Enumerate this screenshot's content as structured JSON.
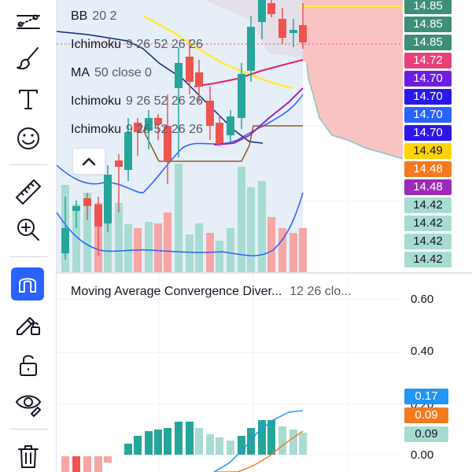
{
  "toolbar": {
    "tools": [
      {
        "name": "trend-line-tool-icon",
        "label": "Trend line"
      },
      {
        "name": "brush-tool-icon",
        "label": "Brush"
      },
      {
        "name": "text-tool-icon",
        "label": "Text"
      },
      {
        "name": "emoji-tool-icon",
        "label": "Icons"
      },
      {
        "name": "ruler-tool-icon",
        "label": "Measure"
      },
      {
        "name": "zoom-in-tool-icon",
        "label": "Zoom in"
      },
      {
        "name": "magnet-tool-icon",
        "label": "Magnet mode",
        "active": true
      },
      {
        "name": "lock-drawing-icon",
        "label": "Lock drawings"
      },
      {
        "name": "lock-all-icon",
        "label": "Lock all"
      },
      {
        "name": "hide-drawings-icon",
        "label": "Hide drawings"
      },
      {
        "name": "trash-icon",
        "label": "Remove drawings"
      }
    ],
    "active_color": "#2962ff"
  },
  "legend": [
    {
      "name": "BB",
      "params": "20 2"
    },
    {
      "name": "Ichimoku",
      "params": "9 26 52 26 26"
    },
    {
      "name": "MA",
      "params": "50 close 0"
    },
    {
      "name": "Ichimoku",
      "params": "9 26 52 26 26"
    },
    {
      "name": "Ichimoku",
      "params": "9 26 52 26 26"
    }
  ],
  "collapse_button": {
    "icon": "chevron-up-icon"
  },
  "price_scale": {
    "tags": [
      {
        "value": "14.85",
        "bg": "#3d8f77",
        "fg": "#ffffff"
      },
      {
        "value": "14.85",
        "bg": "#3d8f77",
        "fg": "#ffffff"
      },
      {
        "value": "14.85",
        "bg": "#3d8f77",
        "fg": "#ffffff"
      },
      {
        "value": "14.72",
        "bg": "#e8407a",
        "fg": "#ffffff"
      },
      {
        "value": "14.70",
        "bg": "#6a1fe0",
        "fg": "#ffffff"
      },
      {
        "value": "14.70",
        "bg": "#2b18e8",
        "fg": "#ffffff"
      },
      {
        "value": "14.70",
        "bg": "#2962ff",
        "fg": "#ffffff"
      },
      {
        "value": "14.70",
        "bg": "#2b18e8",
        "fg": "#ffffff"
      },
      {
        "value": "14.49",
        "bg": "#ffd400",
        "fg": "#131722"
      },
      {
        "value": "14.48",
        "bg": "#f57a1f",
        "fg": "#ffffff"
      },
      {
        "value": "14.48",
        "bg": "#9b2bb8",
        "fg": "#ffffff"
      },
      {
        "value": "14.42",
        "bg": "#a8dcd2",
        "fg": "#131722"
      },
      {
        "value": "14.42",
        "bg": "#a8dcd2",
        "fg": "#131722"
      },
      {
        "value": "14.42",
        "bg": "#a8dcd2",
        "fg": "#131722"
      },
      {
        "value": "14.42",
        "bg": "#a8dcd2",
        "fg": "#131722"
      }
    ]
  },
  "macd": {
    "title": "Moving Average Convergence Diver...",
    "params": "12 26 clo...",
    "axis_labels": [
      "0.60",
      "0.40",
      "0.20",
      "0.00"
    ],
    "tags": [
      {
        "value": "0.17",
        "bg": "#2196f3",
        "fg": "#ffffff"
      },
      {
        "value": "0.09",
        "bg": "#f57a1f",
        "fg": "#ffffff"
      },
      {
        "value": "0.09",
        "bg": "#a8dcd2",
        "fg": "#131722"
      }
    ]
  },
  "colors": {
    "up": "#26a69a",
    "down": "#ef5350",
    "cloud_red": "#f8b8b9",
    "bb_fill": "#dde8f6"
  }
}
